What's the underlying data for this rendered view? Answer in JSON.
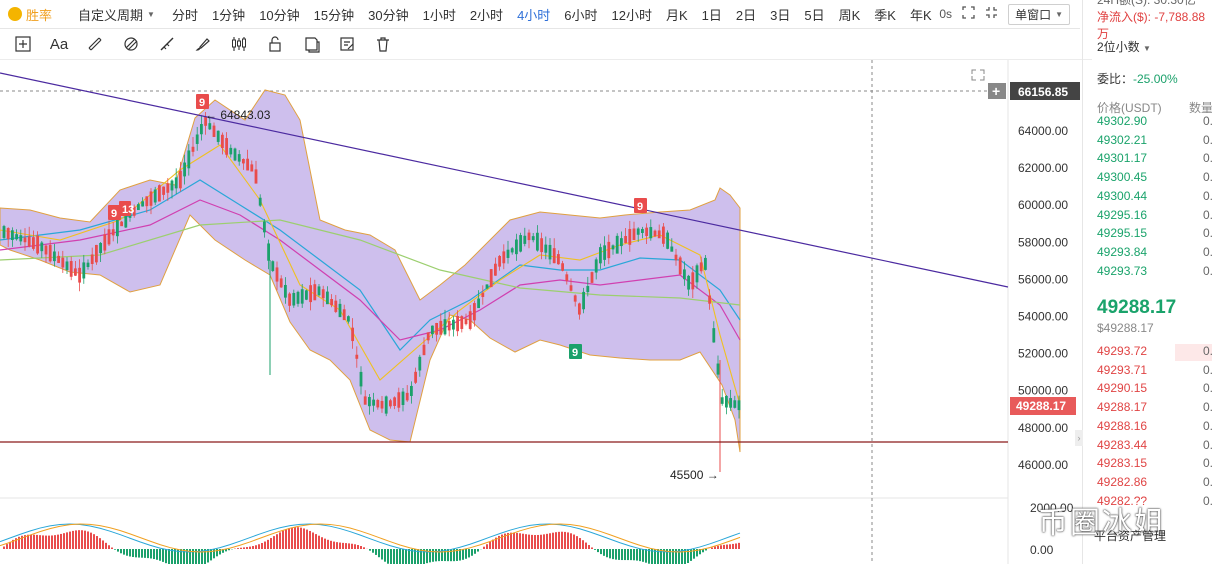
{
  "toolbar": {
    "brand": "胜率",
    "custom_period": "自定义周期",
    "intervals": [
      "分时",
      "1分钟",
      "10分钟",
      "15分钟",
      "30分钟",
      "1小时",
      "2小时",
      "4小时",
      "6小时",
      "12小时",
      "月K",
      "1日",
      "2日",
      "3日",
      "5日",
      "周K",
      "季K",
      "年K"
    ],
    "active_interval": "4小时",
    "countdown": "0s",
    "window_mode": "单窗口"
  },
  "draw_tools": [
    "crosshair-icon",
    "text-icon",
    "ruler-icon",
    "pattern-icon",
    "line-icon",
    "brush-icon",
    "candles-icon",
    "lock-icon",
    "layers-icon",
    "note-icon",
    "trash-icon"
  ],
  "draw_text_label": "Aa",
  "chart": {
    "price_axis": [
      "64000.00",
      "62000.00",
      "60000.00",
      "58000.00",
      "56000.00",
      "54000.00",
      "52000.00",
      "50000.00",
      "48000.00",
      "46000.00"
    ],
    "crosshair_price": "66156.85",
    "current_price_tag": "49288.17",
    "high_label": "64843.03",
    "low_label": "45500",
    "td_marks": [
      "9",
      "13",
      "9",
      "9"
    ],
    "macd_axis": [
      "2000.00",
      "0.00"
    ],
    "colors": {
      "up": "#e94c4c",
      "down": "#1ba16b",
      "band": "#b9a4e6",
      "trend": "#4b2aa0",
      "support": "#8b1a1a",
      "price_tag": "#e85a5a"
    }
  },
  "panel": {
    "vol_24h": "24H额(S): 30.30亿",
    "net_inflow": "净流入($): -7,788.88万",
    "decimals": "2位小数",
    "ratio_label": "委比：",
    "ratio_value": "-25.00%",
    "col_price": "价格(USDT)",
    "col_qty": "数量",
    "asks": [
      {
        "p": "49302.90",
        "q": "0."
      },
      {
        "p": "49302.21",
        "q": "0."
      },
      {
        "p": "49301.17",
        "q": "0."
      },
      {
        "p": "49300.45",
        "q": "0."
      },
      {
        "p": "49300.44",
        "q": "0."
      },
      {
        "p": "49295.16",
        "q": "0."
      },
      {
        "p": "49295.15",
        "q": "0."
      },
      {
        "p": "49293.84",
        "q": "0."
      },
      {
        "p": "49293.73",
        "q": "0."
      }
    ],
    "last_price": "49288.17",
    "last_usd": "$49288.17",
    "bids": [
      {
        "p": "49293.72",
        "q": "0."
      },
      {
        "p": "49293.71",
        "q": "0."
      },
      {
        "p": "49290.15",
        "q": "0."
      },
      {
        "p": "49288.17",
        "q": "0."
      },
      {
        "p": "49288.16",
        "q": "0."
      },
      {
        "p": "49283.44",
        "q": "0."
      },
      {
        "p": "49283.15",
        "q": "0."
      },
      {
        "p": "49282.86",
        "q": "0."
      },
      {
        "p": "49282.??",
        "q": "0."
      }
    ],
    "watermark": "币圈冰姐",
    "watermark_sub": "平台资产管理"
  }
}
